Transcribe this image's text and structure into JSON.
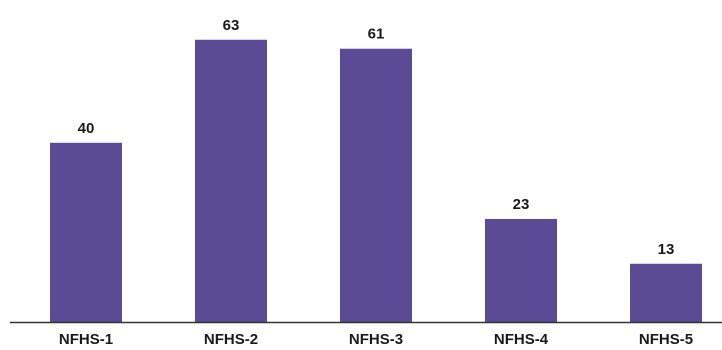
{
  "chart_data": {
    "type": "bar",
    "title": "",
    "xlabel": "",
    "ylabel": "",
    "categories": [
      "NFHS-1",
      "NFHS-2",
      "NFHS-3",
      "NFHS-4",
      "NFHS-5"
    ],
    "values": [
      40,
      63,
      61,
      23,
      13
    ],
    "data_labels": [
      "40",
      "63",
      "61",
      "23",
      "13"
    ],
    "ylim": [
      0,
      70
    ],
    "grid": false,
    "legend": "none",
    "bar_color": "#5b4a94",
    "axis_color": "#333333"
  }
}
